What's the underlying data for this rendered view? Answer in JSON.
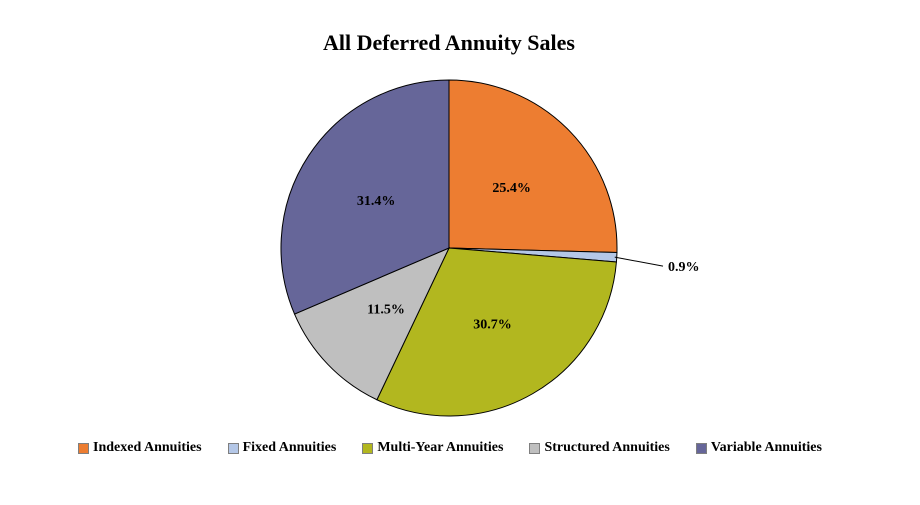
{
  "chart_data": {
    "type": "pie",
    "title": "All Deferred Annuity Sales",
    "start_angle": "12 o'clock",
    "direction": "clockwise",
    "legend_position": "bottom",
    "slices": [
      {
        "label": "Indexed Annuities",
        "value": 25.4,
        "display": "25.4%",
        "color": "#ED7D31"
      },
      {
        "label": "Fixed Annuities",
        "value": 0.9,
        "display": "0.9%",
        "color": "#B4C7E7"
      },
      {
        "label": "Multi-Year Annuities",
        "value": 30.7,
        "display": "30.7%",
        "color": "#B2B71F"
      },
      {
        "label": "Structured Annuities",
        "value": 11.5,
        "display": "11.5%",
        "color": "#BFBFBF"
      },
      {
        "label": "Variable Annuities",
        "value": 31.4,
        "display": "31.4%",
        "color": "#666699"
      }
    ]
  }
}
